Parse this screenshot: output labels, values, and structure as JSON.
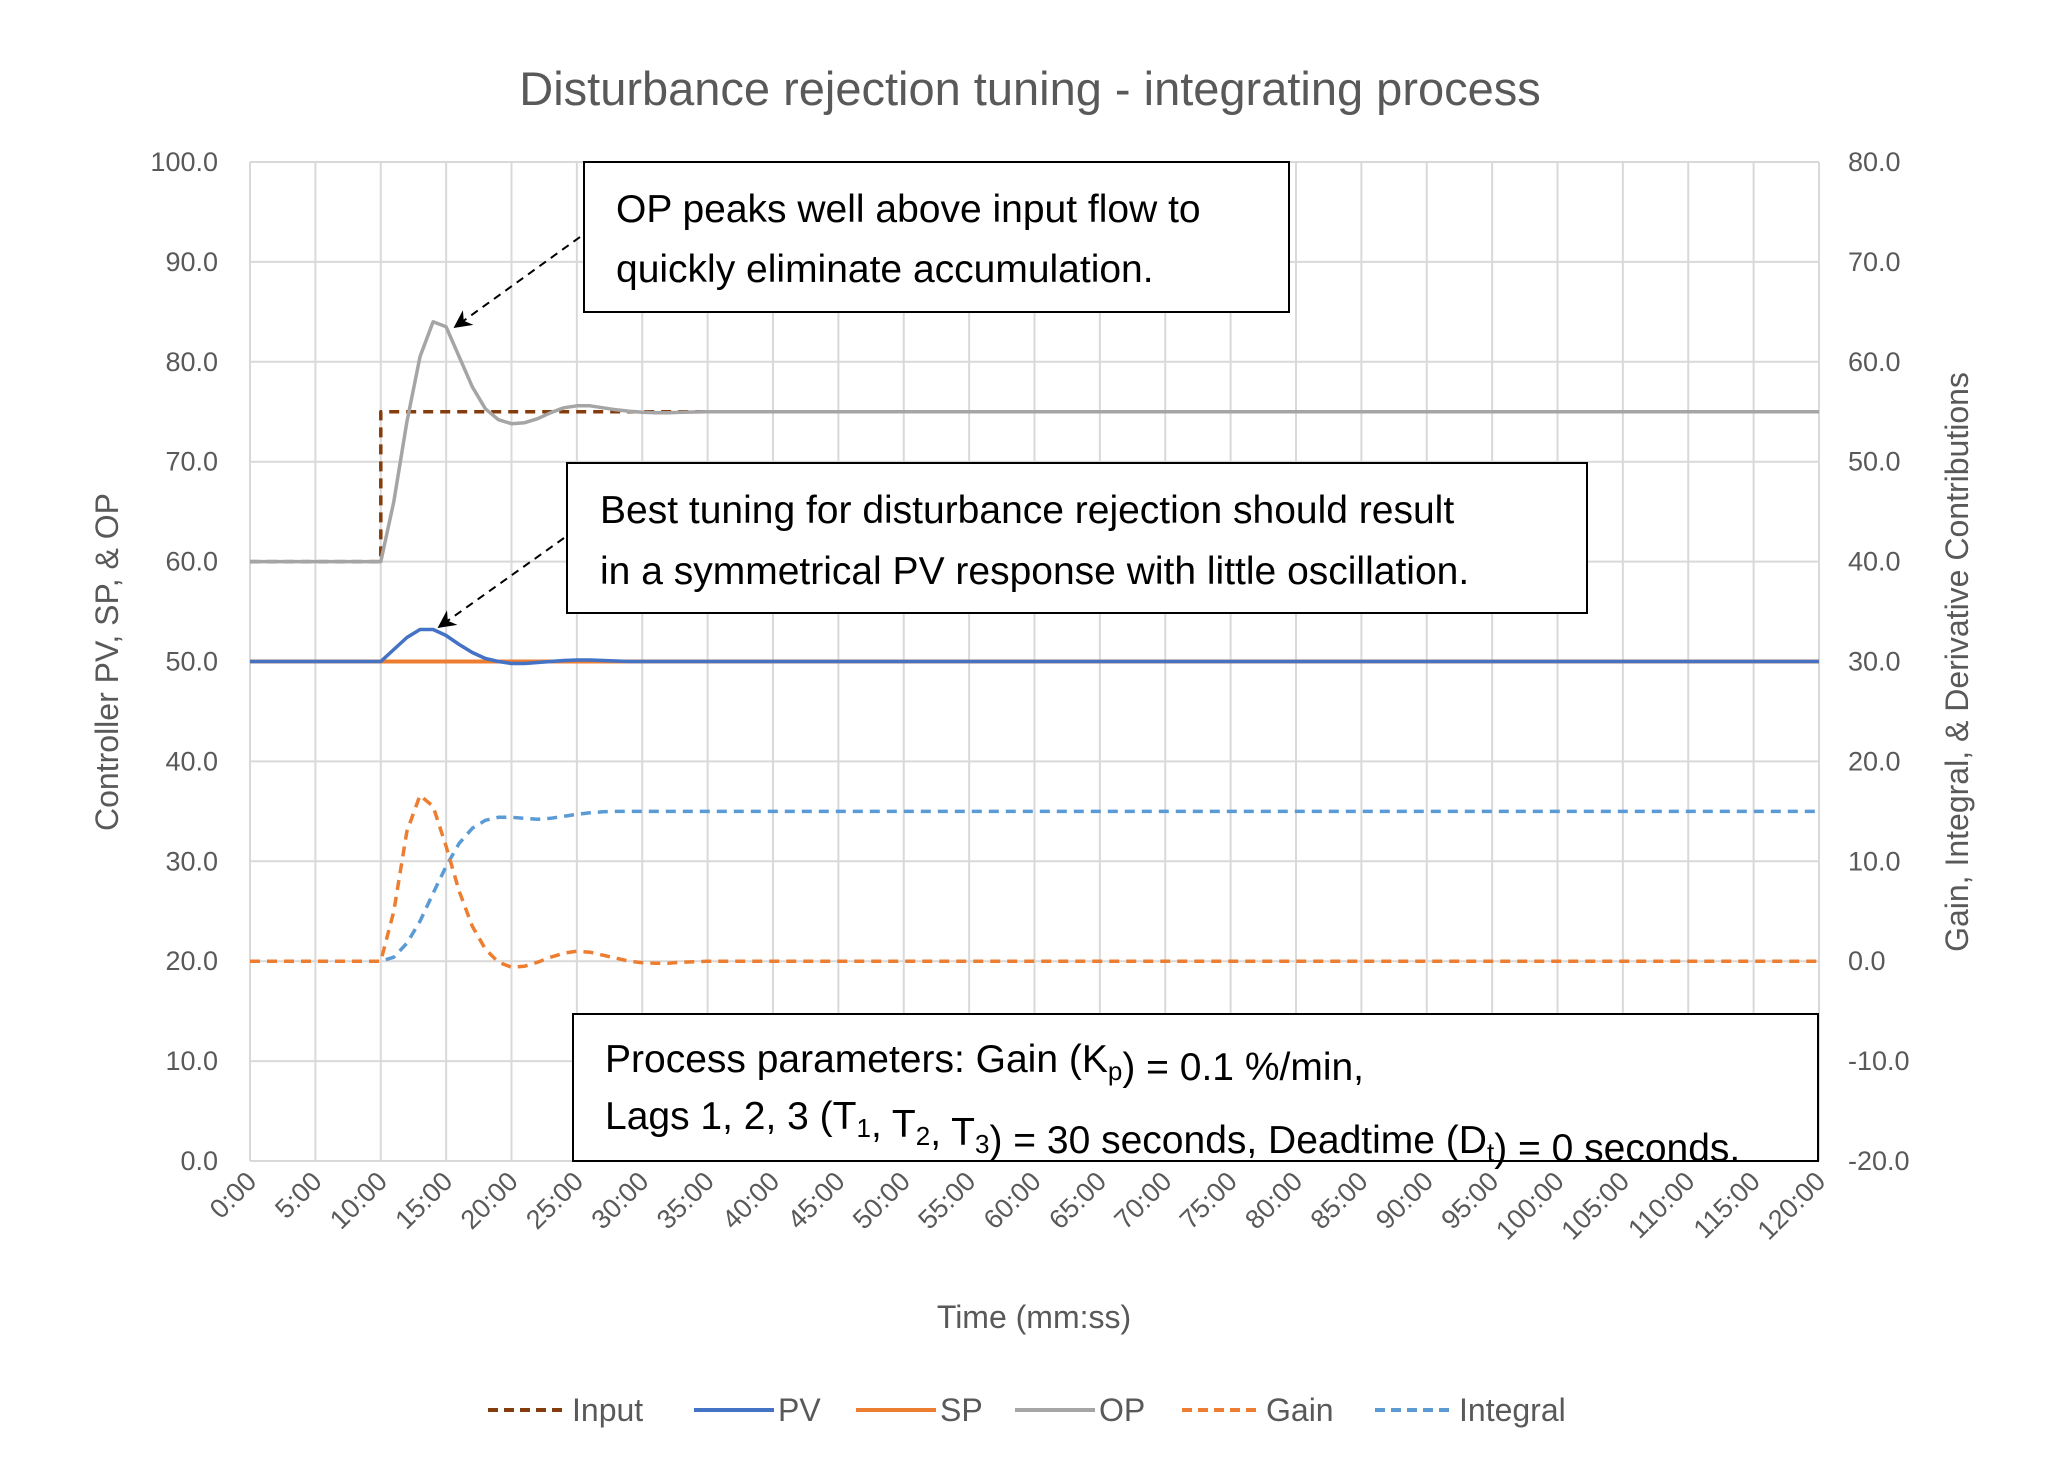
{
  "chart_data": {
    "type": "line",
    "title": "Disturbance rejection tuning - integrating process",
    "xlabel": "Time (mm:ss)",
    "ylabel_left": "Controller PV, SP, & OP",
    "ylabel_right": "Gain, Integral, & Derivative Contributions",
    "xlim": [
      0,
      120
    ],
    "ylim_left": [
      0,
      100
    ],
    "ylim_right": [
      -20,
      80
    ],
    "x_tick_labels": [
      "0:00",
      "5:00",
      "10:00",
      "15:00",
      "20:00",
      "25:00",
      "30:00",
      "35:00",
      "40:00",
      "45:00",
      "50:00",
      "55:00",
      "60:00",
      "65:00",
      "70:00",
      "75:00",
      "80:00",
      "85:00",
      "90:00",
      "95:00",
      "100:00",
      "105:00",
      "110:00",
      "115:00",
      "120:00"
    ],
    "y_left_tick_labels": [
      "0.0",
      "10.0",
      "20.0",
      "30.0",
      "40.0",
      "50.0",
      "60.0",
      "70.0",
      "80.0",
      "90.0",
      "100.0"
    ],
    "y_right_tick_labels": [
      "-20.0",
      "-10.0",
      "0.0",
      "10.0",
      "20.0",
      "30.0",
      "40.0",
      "50.0",
      "60.0",
      "70.0",
      "80.0"
    ],
    "grid": true,
    "legend_placement": "bottom",
    "x_minutes": [
      0,
      10,
      11,
      12,
      13,
      14,
      15,
      16,
      17,
      18,
      19,
      20,
      21,
      22,
      23,
      24,
      25,
      26,
      27,
      28,
      29,
      30,
      31,
      32,
      33,
      35,
      40,
      120
    ],
    "series": [
      {
        "name": "Input",
        "axis": "left",
        "color": "#843C0C",
        "dash": true,
        "x": [
          0,
          10,
          10,
          120
        ],
        "values": [
          60,
          60,
          75,
          75
        ]
      },
      {
        "name": "PV",
        "axis": "left",
        "color": "#4472C4",
        "dash": false,
        "values": [
          50,
          50,
          51.2,
          52.4,
          53.2,
          53.2,
          52.6,
          51.7,
          50.9,
          50.3,
          50,
          49.8,
          49.8,
          49.9,
          50,
          50.1,
          50.15,
          50.15,
          50.1,
          50.05,
          50,
          50,
          50,
          50,
          50,
          50,
          50,
          50
        ]
      },
      {
        "name": "SP",
        "axis": "left",
        "color": "#ED7D31",
        "dash": false,
        "x": [
          0,
          120
        ],
        "values": [
          50,
          50
        ]
      },
      {
        "name": "OP",
        "axis": "left",
        "color": "#A5A5A5",
        "dash": false,
        "values": [
          60,
          60,
          66,
          74,
          80.5,
          84,
          83.5,
          80.5,
          77.5,
          75.3,
          74.2,
          73.8,
          73.9,
          74.3,
          74.9,
          75.4,
          75.6,
          75.6,
          75.4,
          75.2,
          75.05,
          74.95,
          74.9,
          74.9,
          74.95,
          75,
          75,
          75
        ]
      },
      {
        "name": "Gain",
        "axis": "right",
        "color": "#ED7D31",
        "dash": true,
        "values": [
          0,
          0,
          5,
          13,
          16.6,
          15.5,
          11.5,
          7,
          3.5,
          1.2,
          -0.1,
          -0.6,
          -0.5,
          -0.1,
          0.4,
          0.8,
          1.0,
          0.9,
          0.6,
          0.3,
          0,
          -0.15,
          -0.2,
          -0.2,
          -0.1,
          0,
          0,
          0
        ]
      },
      {
        "name": "Integral",
        "axis": "right",
        "color": "#5B9BD5",
        "dash": true,
        "values": [
          0,
          0,
          0.4,
          1.8,
          4,
          6.8,
          9.5,
          11.8,
          13.3,
          14.1,
          14.4,
          14.4,
          14.3,
          14.2,
          14.3,
          14.5,
          14.7,
          14.85,
          14.95,
          15,
          15,
          15,
          15,
          15,
          15,
          15,
          15,
          15
        ]
      }
    ],
    "annotations": [
      {
        "lines": [
          [
            {
              "t": "OP peaks well above input flow to"
            }
          ],
          [
            {
              "t": "quickly eliminate accumulation."
            }
          ]
        ]
      },
      {
        "lines": [
          [
            {
              "t": "Best tuning for disturbance rejection should result"
            }
          ],
          [
            {
              "t": "in a symmetrical PV response with little oscillation."
            }
          ]
        ]
      },
      {
        "lines": [
          [
            {
              "t": "Process parameters:  Gain (K"
            },
            {
              "t": "p",
              "sub": true
            },
            {
              "t": ") = 0.1 %/min,"
            }
          ],
          [
            {
              "t": "Lags 1, 2, 3 (T"
            },
            {
              "t": "1",
              "sub": true
            },
            {
              "t": ", T"
            },
            {
              "t": "2",
              "sub": true
            },
            {
              "t": ", T"
            },
            {
              "t": "3",
              "sub": true
            },
            {
              "t": ") = 30 seconds, Deadtime (D"
            },
            {
              "t": "t",
              "sub": true
            },
            {
              "t": ") = 0 seconds."
            }
          ]
        ]
      }
    ]
  }
}
